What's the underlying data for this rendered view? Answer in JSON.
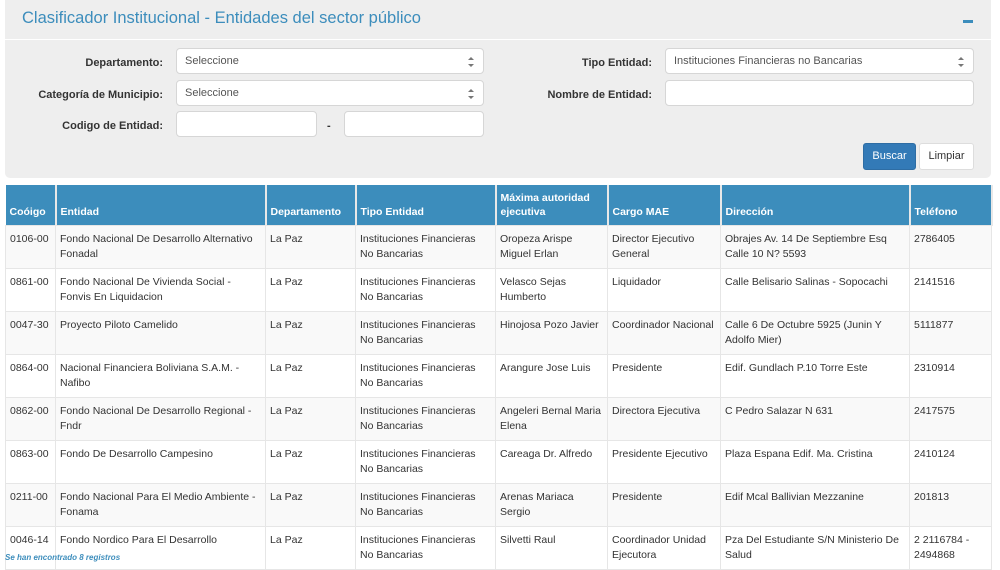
{
  "header": {
    "title": "Clasificador Institucional - Entidades del sector público",
    "collapse_icon": "minus-icon"
  },
  "filters": {
    "departamento": {
      "label": "Departamento:",
      "value": "Seleccione"
    },
    "categoria": {
      "label": "Categoría de Municipio:",
      "value": "Seleccione"
    },
    "codigo": {
      "label": "Codigo de Entidad:",
      "from": "",
      "to": "",
      "separator": "-"
    },
    "tipo": {
      "label": "Tipo Entidad:",
      "value": "Instituciones Financieras no Bancarias"
    },
    "nombre": {
      "label": "Nombre de Entidad:",
      "value": ""
    },
    "buscar": "Buscar",
    "limpiar": "Limpiar"
  },
  "table": {
    "columns": [
      "Coóigo",
      "Entidad",
      "Departamento",
      "Tipo Entidad",
      "Máxima autoridad ejecutiva",
      "Cargo MAE",
      "Dirección",
      "Teléfono"
    ],
    "rows": [
      [
        "0106-00",
        "Fondo Nacional De Desarrollo Alternativo Fonadal",
        "La Paz",
        "Instituciones Financieras No Bancarias",
        "Oropeza Arispe Miguel Erlan",
        "Director Ejecutivo General",
        "Obrajes Av. 14 De Septiembre Esq Calle 10 N? 5593",
        "2786405"
      ],
      [
        "0861-00",
        "Fondo Nacional De Vivienda Social - Fonvis En Liquidacion",
        "La Paz",
        "Instituciones Financieras No Bancarias",
        "Velasco Sejas Humberto",
        "Liquidador",
        "Calle Belisario Salinas - Sopocachi",
        "2141516"
      ],
      [
        "0047-30",
        "Proyecto Piloto Camelido",
        "La Paz",
        "Instituciones Financieras No Bancarias",
        "Hinojosa Pozo Javier",
        "Coordinador Nacional",
        "Calle 6 De Octubre 5925 (Junin Y Adolfo Mier)",
        "5111877"
      ],
      [
        "0864-00",
        "Nacional Financiera Boliviana S.A.M. - Nafibo",
        "La Paz",
        "Instituciones Financieras No Bancarias",
        "Arangure Jose Luis",
        "Presidente",
        "Edif. Gundlach P.10 Torre Este",
        "2310914"
      ],
      [
        "0862-00",
        "Fondo Nacional De Desarrollo Regional - Fndr",
        "La Paz",
        "Instituciones Financieras No Bancarias",
        "Angeleri Bernal Maria Elena",
        "Directora Ejecutiva",
        "C Pedro Salazar N 631",
        "2417575"
      ],
      [
        "0863-00",
        "Fondo De Desarrollo Campesino",
        "La Paz",
        "Instituciones Financieras No Bancarias",
        "Careaga Dr. Alfredo",
        "Presidente Ejecutivo",
        "Plaza Espana Edif. Ma. Cristina",
        "2410124"
      ],
      [
        "0211-00",
        "Fondo Nacional Para El Medio Ambiente - Fonama",
        "La Paz",
        "Instituciones Financieras No Bancarias",
        "Arenas Mariaca Sergio",
        "Presidente",
        "Edif Mcal Ballivian Mezzanine",
        "201813"
      ],
      [
        "0046-14",
        "Fondo Nordico Para El Desarrollo",
        "La Paz",
        "Instituciones Financieras No Bancarias",
        "Silvetti Raul",
        "Coordinador Unidad Ejecutora",
        "Pza Del Estudiante S/N Ministerio De Salud",
        "2 2116784 - 2494868"
      ]
    ]
  },
  "footer": "Se han encontrado 8 registros"
}
